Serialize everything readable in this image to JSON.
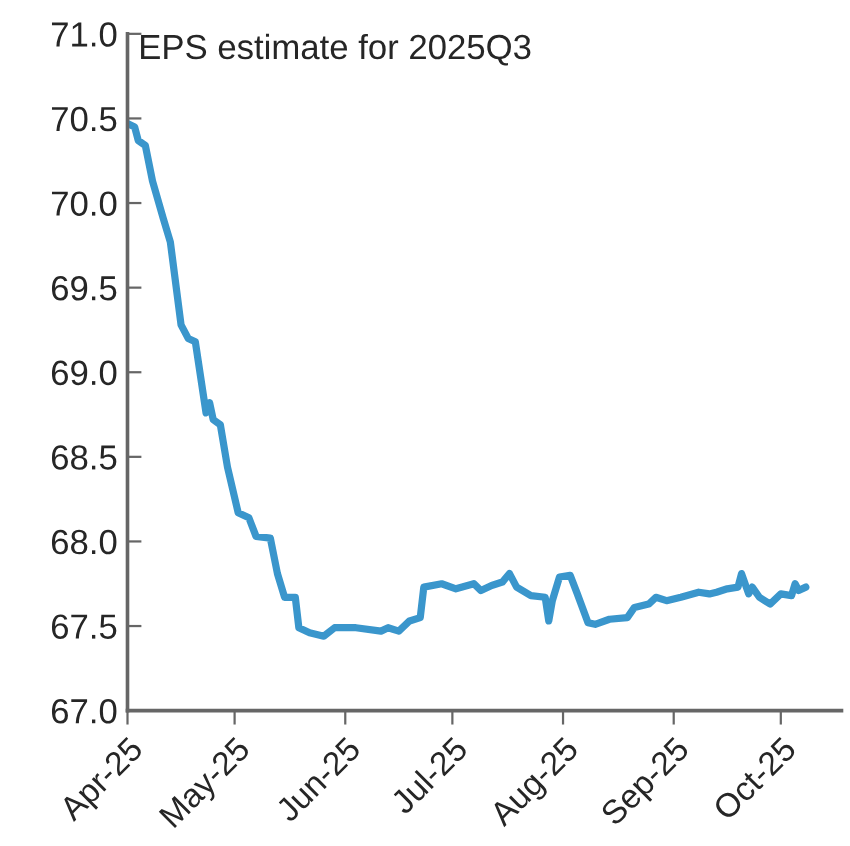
{
  "chart_data": {
    "type": "line",
    "ylabel": "EPS estimate for 2025Q3",
    "x": [
      "2025-04-01",
      "2025-04-03",
      "2025-04-04",
      "2025-04-06",
      "2025-04-08",
      "2025-04-11",
      "2025-04-13",
      "2025-04-16",
      "2025-04-18",
      "2025-04-20",
      "2025-04-23",
      "2025-04-24",
      "2025-04-25",
      "2025-04-27",
      "2025-04-29",
      "2025-05-02",
      "2025-05-05",
      "2025-05-07",
      "2025-05-11",
      "2025-05-13",
      "2025-05-15",
      "2025-05-18",
      "2025-05-19",
      "2025-05-22",
      "2025-05-26",
      "2025-05-29",
      "2025-06-04",
      "2025-06-11",
      "2025-06-13",
      "2025-06-16",
      "2025-06-19",
      "2025-06-22",
      "2025-06-23",
      "2025-06-28",
      "2025-07-02",
      "2025-07-07",
      "2025-07-09",
      "2025-07-12",
      "2025-07-15",
      "2025-07-17",
      "2025-07-19",
      "2025-07-23",
      "2025-07-27",
      "2025-07-28",
      "2025-07-29",
      "2025-07-31",
      "2025-08-03",
      "2025-08-05",
      "2025-08-08",
      "2025-08-10",
      "2025-08-14",
      "2025-08-19",
      "2025-08-21",
      "2025-08-25",
      "2025-08-27",
      "2025-08-30",
      "2025-09-03",
      "2025-09-08",
      "2025-09-11",
      "2025-09-13",
      "2025-09-16",
      "2025-09-19",
      "2025-09-20",
      "2025-09-22",
      "2025-09-23",
      "2025-09-25",
      "2025-09-28",
      "2025-10-01",
      "2025-10-04",
      "2025-10-05",
      "2025-10-06",
      "2025-10-08"
    ],
    "series": [
      {
        "color": "#3a96cc",
        "values": [
          70.47,
          70.45,
          70.37,
          70.34,
          70.13,
          69.91,
          69.77,
          69.28,
          69.2,
          69.18,
          68.76,
          68.82,
          68.72,
          68.69,
          68.44,
          68.17,
          68.14,
          68.03,
          68.02,
          67.81,
          67.67,
          67.67,
          67.49,
          67.46,
          67.44,
          67.49,
          67.49,
          67.47,
          67.49,
          67.47,
          67.53,
          67.55,
          67.73,
          67.75,
          67.72,
          67.75,
          67.71,
          67.74,
          67.76,
          67.81,
          67.73,
          67.68,
          67.67,
          67.53,
          67.65,
          67.79,
          67.8,
          67.69,
          67.52,
          67.51,
          67.54,
          67.55,
          67.61,
          67.63,
          67.67,
          67.65,
          67.67,
          67.7,
          67.69,
          67.7,
          67.72,
          67.73,
          67.81,
          67.69,
          67.73,
          67.67,
          67.63,
          67.69,
          67.68,
          67.75,
          67.71,
          67.73
        ]
      }
    ],
    "xlim": [
      "2025-04-01",
      "2025-10-18"
    ],
    "xticks": [
      {
        "value": "2025-04-01",
        "label": "Apr-25"
      },
      {
        "value": "2025-05-01",
        "label": "May-25"
      },
      {
        "value": "2025-06-01",
        "label": "Jun-25"
      },
      {
        "value": "2025-07-01",
        "label": "Jul-25"
      },
      {
        "value": "2025-08-01",
        "label": "Aug-25"
      },
      {
        "value": "2025-09-01",
        "label": "Sep-25"
      },
      {
        "value": "2025-10-01",
        "label": "Oct-25"
      }
    ],
    "ylim": [
      67.0,
      71.0
    ],
    "yticks": [
      {
        "value": 67.0,
        "label": "67.0"
      },
      {
        "value": 67.5,
        "label": "67.5"
      },
      {
        "value": 68.0,
        "label": "68.0"
      },
      {
        "value": 68.5,
        "label": "68.5"
      },
      {
        "value": 69.0,
        "label": "69.0"
      },
      {
        "value": 69.5,
        "label": "69.5"
      },
      {
        "value": 70.0,
        "label": "70.0"
      },
      {
        "value": 70.5,
        "label": "70.5"
      },
      {
        "value": 71.0,
        "label": "71.0"
      }
    ],
    "grid": false,
    "legend": false,
    "line_style": "solid"
  }
}
